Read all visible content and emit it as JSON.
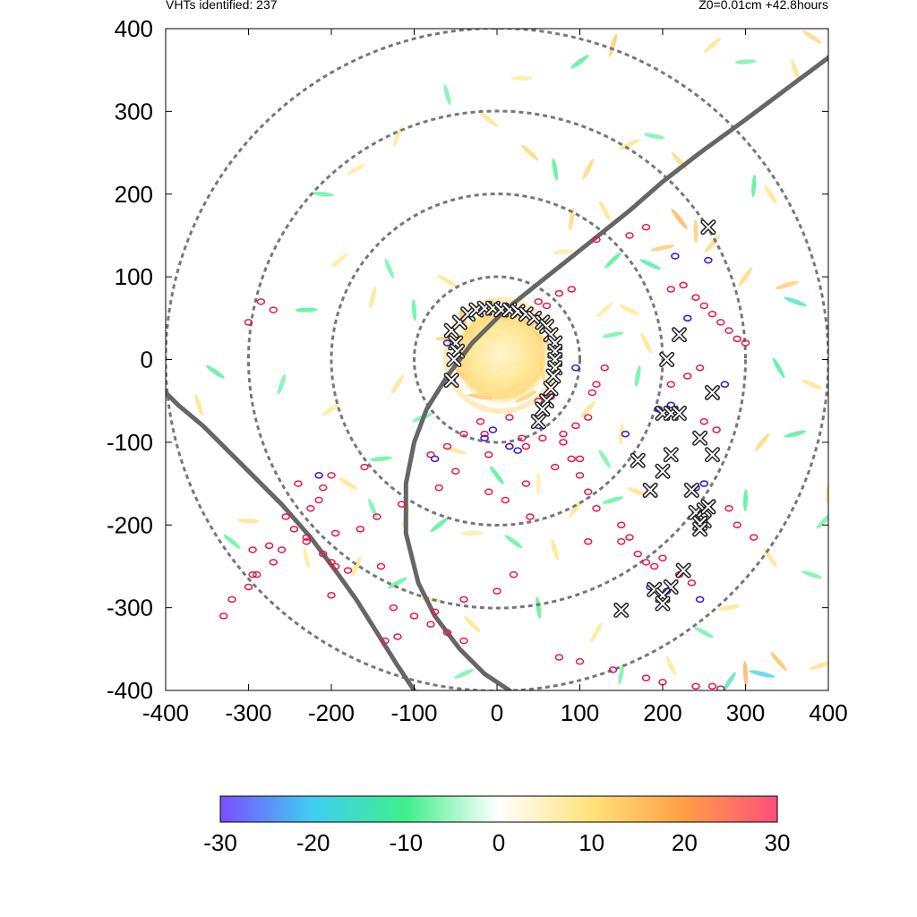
{
  "header": {
    "left_text": "VHTs identified: 237",
    "right_text": "Z0=0.01cm  +42.8hours"
  },
  "chart_data": {
    "type": "scatter",
    "title": "",
    "xlabel": "",
    "ylabel": "",
    "xlim": [
      -400,
      400
    ],
    "ylim": [
      -400,
      400
    ],
    "x_ticks": [
      -400,
      -300,
      -200,
      -100,
      0,
      100,
      200,
      300,
      400
    ],
    "y_ticks": [
      400,
      300,
      200,
      100,
      0,
      -100,
      -200,
      -300,
      -400
    ],
    "grid": false,
    "range_rings": [
      100,
      200,
      300,
      400
    ],
    "colorbar": {
      "range": [
        -30,
        30
      ],
      "ticks": [
        -30,
        -20,
        -10,
        0,
        10,
        20,
        30
      ],
      "stops": [
        {
          "value": -30,
          "color": "#7a4dff"
        },
        {
          "value": -20,
          "color": "#3fcff2"
        },
        {
          "value": -10,
          "color": "#3fef8a"
        },
        {
          "value": 0,
          "color": "#ffffff"
        },
        {
          "value": 10,
          "color": "#ffe27a"
        },
        {
          "value": 20,
          "color": "#ff9e45"
        },
        {
          "value": 30,
          "color": "#ff4f7a"
        }
      ]
    },
    "eye_region": {
      "center": [
        5,
        5
      ],
      "radius": 60
    },
    "vht_markers": {
      "x": [
        -55,
        -45,
        -35,
        -25,
        -15,
        -5,
        5,
        15,
        25,
        35,
        45,
        55,
        60,
        65,
        70,
        70,
        70,
        70,
        68,
        65,
        60,
        55,
        50,
        -50,
        -48,
        -52,
        -55,
        255,
        220,
        205,
        260,
        200,
        210,
        220,
        245,
        260,
        170,
        185,
        200,
        210,
        235,
        240,
        250,
        255,
        245,
        245,
        250,
        255,
        225,
        210,
        190,
        200,
        200,
        150
      ],
      "y": [
        35,
        45,
        55,
        60,
        62,
        62,
        60,
        60,
        58,
        55,
        50,
        45,
        40,
        30,
        20,
        10,
        0,
        -10,
        -20,
        -35,
        -50,
        -60,
        -75,
        20,
        10,
        0,
        -25,
        160,
        30,
        0,
        -40,
        -65,
        -65,
        -65,
        -95,
        -115,
        -122,
        -158,
        -135,
        -115,
        -158,
        -185,
        -195,
        -178,
        -198,
        -205,
        -182,
        -178,
        -255,
        -275,
        -278,
        -285,
        -295,
        -303
      ]
    },
    "positive_contours": {
      "x": [
        30,
        -15,
        90,
        75,
        50,
        60,
        65,
        80,
        100,
        -10,
        10,
        35,
        70,
        -50,
        -70,
        -115,
        -145,
        -165,
        -195,
        -230,
        -275,
        -295,
        20,
        0,
        -40,
        -75,
        -100,
        -120,
        -135,
        -140,
        -180,
        -200,
        -210,
        -230,
        -245,
        -255,
        -240,
        -200,
        -160,
        -10,
        15,
        35,
        55,
        80,
        95,
        110,
        115,
        120,
        130,
        210,
        225,
        240,
        250,
        260,
        270,
        280,
        290,
        300,
        210,
        230,
        245,
        250,
        265,
        150,
        160,
        -195,
        -295,
        -200,
        -125,
        -80,
        -60,
        -40,
        75,
        100,
        140,
        180,
        200,
        240,
        260,
        270,
        150,
        170,
        180,
        190,
        120,
        110,
        100,
        90,
        15,
        50,
        -20,
        -40,
        -60,
        -80,
        120,
        160,
        180,
        -210,
        -215,
        -225,
        -260,
        -270,
        -290,
        -300,
        -320,
        -330,
        -285,
        -270,
        -300,
        40,
        110,
        200,
        220,
        235,
        280,
        290,
        310
      ],
      "y": [
        -95,
        -90,
        85,
        80,
        70,
        65,
        -45,
        -100,
        -120,
        -160,
        -170,
        -150,
        -130,
        -135,
        -155,
        -175,
        -190,
        -205,
        -210,
        -215,
        -225,
        -230,
        -260,
        -280,
        -290,
        -305,
        -310,
        -335,
        -340,
        -250,
        -255,
        -245,
        -235,
        -220,
        -205,
        -190,
        -150,
        -140,
        -130,
        -115,
        -105,
        -105,
        -95,
        -90,
        -80,
        -70,
        -40,
        -30,
        -10,
        85,
        90,
        75,
        65,
        55,
        45,
        35,
        25,
        20,
        -30,
        -20,
        -10,
        -75,
        -85,
        -200,
        -215,
        -250,
        -260,
        -285,
        -300,
        -320,
        -330,
        -340,
        -360,
        -365,
        -375,
        -385,
        -390,
        -395,
        -395,
        -398,
        -220,
        -235,
        -245,
        -250,
        -180,
        -160,
        -140,
        -120,
        -70,
        -50,
        -75,
        -90,
        -105,
        -115,
        145,
        150,
        160,
        -155,
        -170,
        -180,
        -230,
        -245,
        -260,
        -275,
        -290,
        -310,
        70,
        60,
        45,
        -190,
        -220,
        -240,
        -260,
        -270,
        -180,
        -200,
        -215
      ]
    },
    "negative_contours": {
      "x": [
        -60,
        -55,
        215,
        255,
        50,
        185,
        200,
        240,
        250,
        -215,
        -75,
        245,
        -15,
        15,
        -5,
        25,
        95,
        155,
        195,
        275,
        205,
        210,
        230
      ],
      "y": [
        20,
        -25,
        125,
        120,
        -80,
        -275,
        -285,
        -155,
        -150,
        -140,
        -120,
        -290,
        -95,
        -105,
        -85,
        -110,
        -10,
        -90,
        -60,
        -30,
        -280,
        -55,
        50
      ]
    },
    "tracks": [
      {
        "x": [
          15,
          -15,
          -45,
          -75,
          -95,
          -110,
          -110,
          -100,
          -85,
          -60,
          -30,
          10,
          60,
          110,
          160,
          200,
          245,
          300,
          340,
          380,
          420
        ],
        "y": [
          -400,
          -380,
          -350,
          -310,
          -270,
          -210,
          -150,
          -100,
          -60,
          -20,
          20,
          60,
          100,
          140,
          180,
          215,
          250,
          290,
          320,
          350,
          380
        ]
      },
      {
        "x": [
          -100,
          -120,
          -145,
          -170,
          -195,
          -225,
          -260,
          -295,
          -325,
          -355,
          -385,
          -410
        ],
        "y": [
          -400,
          -370,
          -330,
          -290,
          -255,
          -215,
          -175,
          -140,
          -110,
          -80,
          -55,
          -30
        ]
      }
    ],
    "speckles": [
      [
        -60,
        25,
        14
      ],
      [
        -50,
        15,
        12
      ],
      [
        -40,
        45,
        18
      ],
      [
        -10,
        58,
        15
      ],
      [
        20,
        55,
        16
      ],
      [
        40,
        45,
        18
      ],
      [
        55,
        25,
        14
      ],
      [
        55,
        -15,
        12
      ],
      [
        60,
        -40,
        16
      ],
      [
        35,
        -45,
        14
      ],
      [
        -20,
        -45,
        16
      ],
      [
        -45,
        -15,
        14
      ],
      [
        -30,
        25,
        12
      ],
      [
        25,
        -25,
        10
      ],
      [
        10,
        -10,
        12
      ],
      [
        -5,
        30,
        10
      ],
      [
        220,
        170,
        18
      ],
      [
        240,
        155,
        14
      ],
      [
        300,
        100,
        12
      ],
      [
        350,
        90,
        14
      ],
      [
        360,
        70,
        -14
      ],
      [
        330,
        200,
        10
      ],
      [
        310,
        210,
        -10
      ],
      [
        260,
        140,
        12
      ],
      [
        200,
        135,
        14
      ],
      [
        185,
        115,
        -12
      ],
      [
        130,
        180,
        10
      ],
      [
        90,
        170,
        12
      ],
      [
        140,
        120,
        -10
      ],
      [
        80,
        130,
        8
      ],
      [
        -60,
        95,
        10
      ],
      [
        -130,
        110,
        -8
      ],
      [
        -150,
        75,
        10
      ],
      [
        -190,
        120,
        8
      ],
      [
        -230,
        60,
        -10
      ],
      [
        -340,
        -15,
        -10
      ],
      [
        -360,
        -55,
        10
      ],
      [
        -260,
        -30,
        -8
      ],
      [
        -200,
        -60,
        9
      ],
      [
        -300,
        -195,
        10
      ],
      [
        -320,
        -220,
        -9
      ],
      [
        -230,
        -240,
        8
      ],
      [
        -170,
        -250,
        10
      ],
      [
        -120,
        -270,
        -9
      ],
      [
        -80,
        -290,
        8
      ],
      [
        -30,
        -320,
        10
      ],
      [
        50,
        -300,
        -10
      ],
      [
        120,
        -330,
        9
      ],
      [
        -40,
        -380,
        -8
      ],
      [
        320,
        -380,
        -20
      ],
      [
        340,
        -365,
        16
      ],
      [
        300,
        -380,
        18
      ],
      [
        280,
        -390,
        -14
      ],
      [
        390,
        -370,
        10
      ],
      [
        380,
        -260,
        -8
      ],
      [
        330,
        -240,
        10
      ],
      [
        300,
        -170,
        -10
      ],
      [
        320,
        -100,
        12
      ],
      [
        360,
        -90,
        -10
      ],
      [
        380,
        -30,
        10
      ],
      [
        340,
        -10,
        -12
      ],
      [
        400,
        -160,
        10
      ],
      [
        395,
        -195,
        -8
      ],
      [
        280,
        -300,
        10
      ],
      [
        250,
        -330,
        -8
      ],
      [
        210,
        -370,
        9
      ],
      [
        150,
        -380,
        -8
      ],
      [
        260,
        380,
        10
      ],
      [
        300,
        360,
        -8
      ],
      [
        380,
        390,
        12
      ],
      [
        360,
        350,
        10
      ],
      [
        140,
        380,
        14
      ],
      [
        100,
        360,
        -10
      ],
      [
        30,
        340,
        8
      ],
      [
        -10,
        290,
        10
      ],
      [
        -60,
        320,
        -8
      ],
      [
        -120,
        270,
        9
      ],
      [
        -170,
        230,
        8
      ],
      [
        -210,
        200,
        -9
      ],
      [
        40,
        250,
        12
      ],
      [
        70,
        230,
        -10
      ],
      [
        110,
        230,
        12
      ],
      [
        160,
        260,
        10
      ],
      [
        190,
        270,
        -8
      ],
      [
        220,
        240,
        12
      ],
      [
        -100,
        60,
        -9
      ],
      [
        -120,
        -30,
        10
      ],
      [
        -90,
        -70,
        -8
      ],
      [
        -50,
        -110,
        9
      ],
      [
        0,
        -140,
        -10
      ],
      [
        50,
        -150,
        8
      ],
      [
        95,
        -180,
        10
      ],
      [
        140,
        -170,
        -9
      ],
      [
        170,
        -160,
        10
      ],
      [
        130,
        -120,
        -8
      ],
      [
        150,
        -90,
        9
      ],
      [
        110,
        -60,
        10
      ],
      [
        140,
        30,
        -8
      ],
      [
        160,
        60,
        9
      ],
      [
        180,
        20,
        10
      ],
      [
        170,
        -20,
        -9
      ],
      [
        130,
        60,
        8
      ],
      [
        -140,
        -120,
        -9
      ],
      [
        -180,
        -150,
        10
      ],
      [
        -150,
        -180,
        -8
      ],
      [
        -110,
        -190,
        9
      ],
      [
        -70,
        -200,
        -10
      ],
      [
        -30,
        -210,
        8
      ],
      [
        20,
        -220,
        -9
      ],
      [
        70,
        -230,
        10
      ]
    ]
  }
}
